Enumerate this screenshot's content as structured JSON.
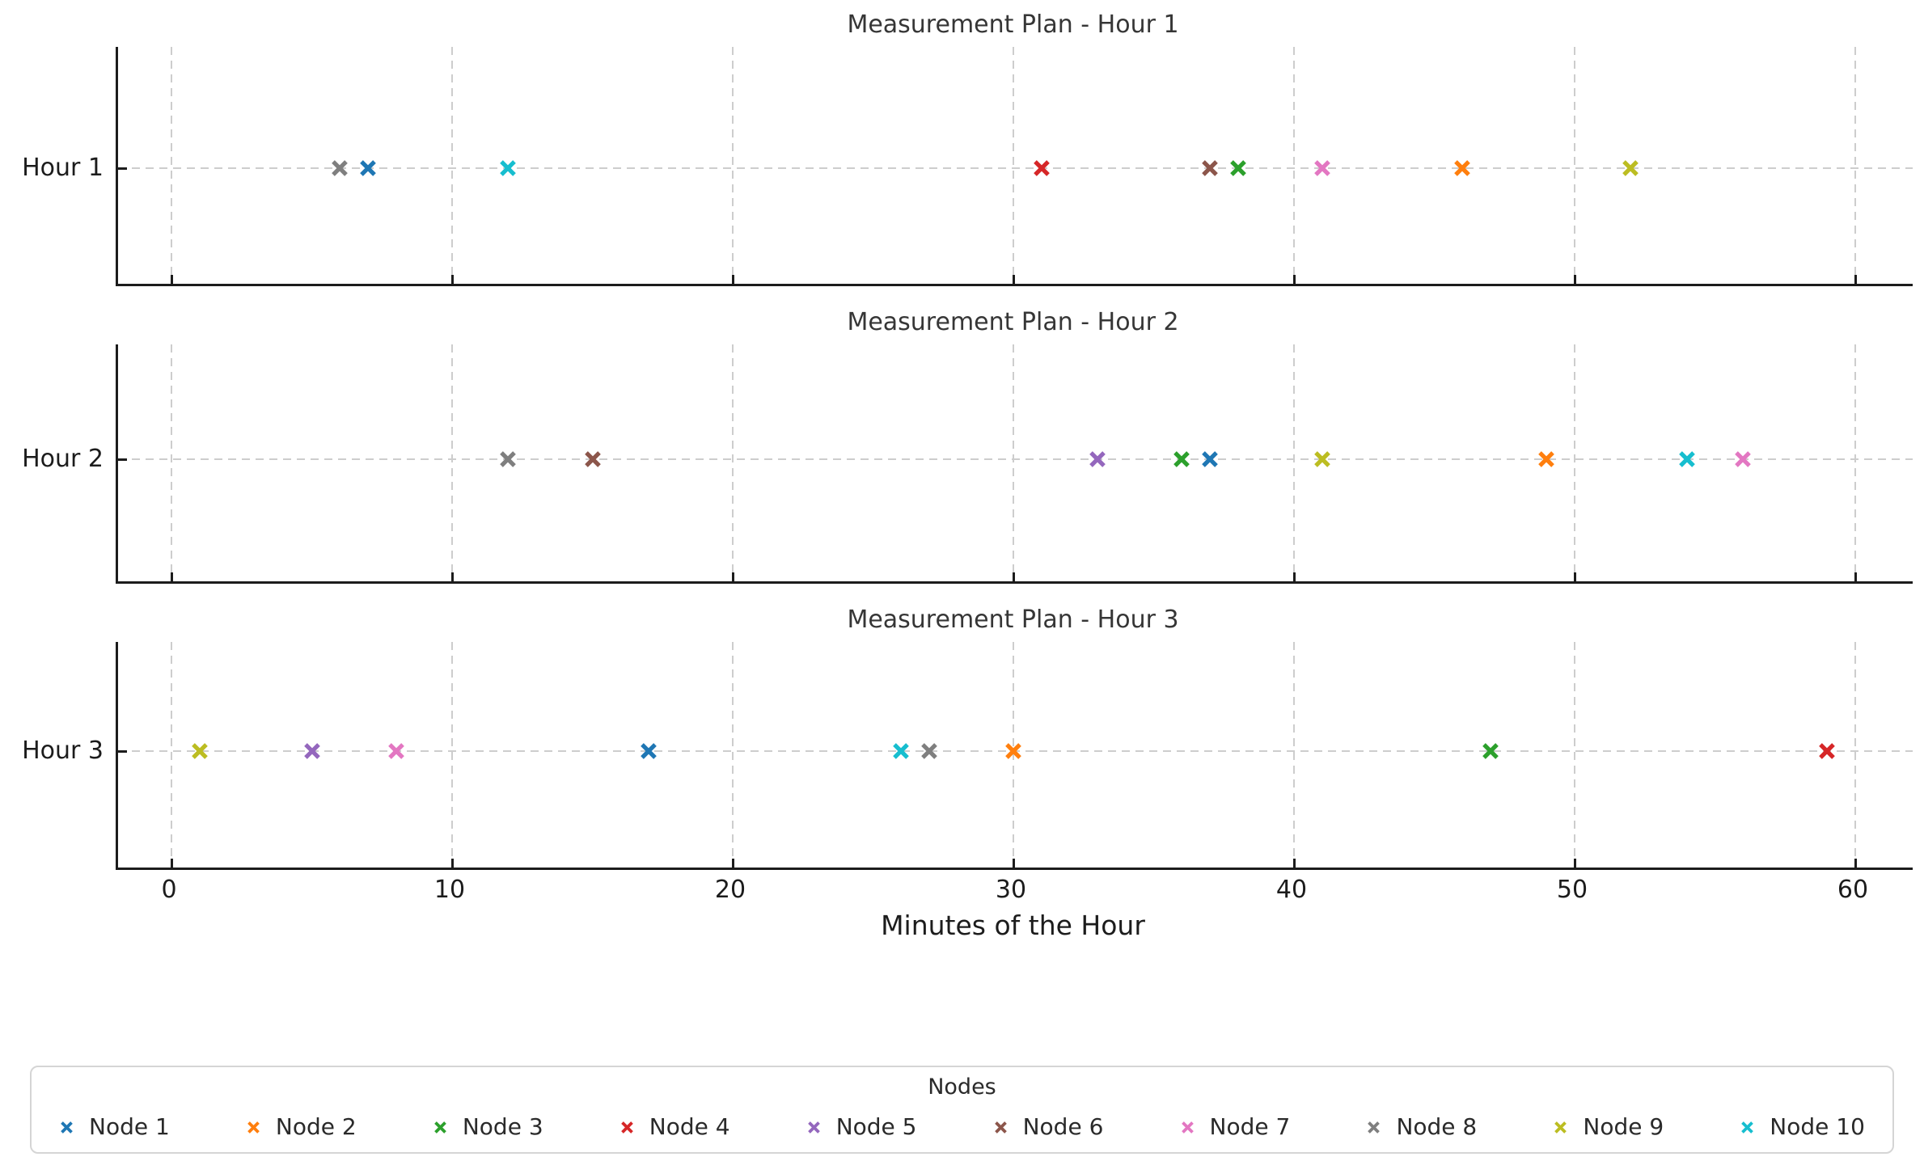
{
  "chart_data": {
    "type": "scatter",
    "marker": "x",
    "grid": true,
    "xlabel": "Minutes of the Hour",
    "x_ticks": [
      0,
      10,
      20,
      30,
      40,
      50,
      60
    ],
    "xlim": [
      -1.9,
      62.1
    ],
    "subplots": [
      {
        "title": "Measurement Plan - Hour 1",
        "row_label": "Hour 1",
        "points": [
          {
            "node": "Node 8",
            "minute": 6
          },
          {
            "node": "Node 1",
            "minute": 7
          },
          {
            "node": "Node 10",
            "minute": 12
          },
          {
            "node": "Node 4",
            "minute": 31
          },
          {
            "node": "Node 6",
            "minute": 37
          },
          {
            "node": "Node 3",
            "minute": 38
          },
          {
            "node": "Node 7",
            "minute": 41
          },
          {
            "node": "Node 2",
            "minute": 46
          },
          {
            "node": "Node 9",
            "minute": 52
          }
        ]
      },
      {
        "title": "Measurement Plan - Hour 2",
        "row_label": "Hour 2",
        "points": [
          {
            "node": "Node 8",
            "minute": 12
          },
          {
            "node": "Node 6",
            "minute": 15
          },
          {
            "node": "Node 5",
            "minute": 33
          },
          {
            "node": "Node 3",
            "minute": 36
          },
          {
            "node": "Node 1",
            "minute": 37
          },
          {
            "node": "Node 9",
            "minute": 41
          },
          {
            "node": "Node 2",
            "minute": 49
          },
          {
            "node": "Node 10",
            "minute": 54
          },
          {
            "node": "Node 7",
            "minute": 56
          }
        ]
      },
      {
        "title": "Measurement Plan - Hour 3",
        "row_label": "Hour 3",
        "points": [
          {
            "node": "Node 9",
            "minute": 1
          },
          {
            "node": "Node 5",
            "minute": 5
          },
          {
            "node": "Node 7",
            "minute": 8
          },
          {
            "node": "Node 1",
            "minute": 17
          },
          {
            "node": "Node 10",
            "minute": 26
          },
          {
            "node": "Node 8",
            "minute": 27
          },
          {
            "node": "Node 2",
            "minute": 30
          },
          {
            "node": "Node 3",
            "minute": 47
          },
          {
            "node": "Node 4",
            "minute": 59
          }
        ]
      }
    ],
    "legend": {
      "title": "Nodes",
      "position": "bottom",
      "entries": [
        {
          "label": "Node 1",
          "color": "#1f77b4"
        },
        {
          "label": "Node 2",
          "color": "#ff7f0e"
        },
        {
          "label": "Node 3",
          "color": "#2ca02c"
        },
        {
          "label": "Node 4",
          "color": "#d62728"
        },
        {
          "label": "Node 5",
          "color": "#9467bd"
        },
        {
          "label": "Node 6",
          "color": "#8c564b"
        },
        {
          "label": "Node 7",
          "color": "#e377c2"
        },
        {
          "label": "Node 8",
          "color": "#7f7f7f"
        },
        {
          "label": "Node 9",
          "color": "#bcbd22"
        },
        {
          "label": "Node 10",
          "color": "#17becf"
        }
      ]
    }
  }
}
